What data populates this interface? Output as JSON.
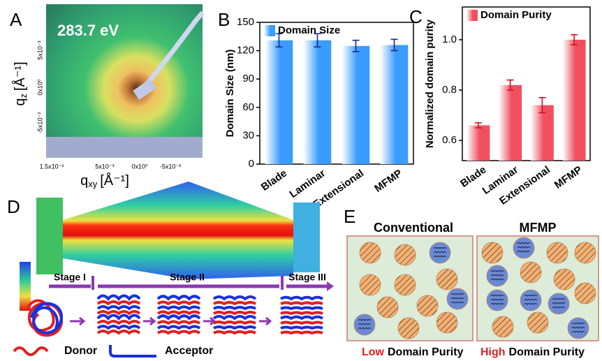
{
  "panel_labels": [
    "A",
    "B",
    "C",
    "D",
    "E"
  ],
  "panel_a": {
    "energy": "283.7 eV",
    "x_label": {
      "base": "q",
      "sub": "xy",
      "unit": "[Å⁻¹]"
    },
    "y_label": {
      "base": "q",
      "sub": "z",
      "unit": "[Å⁻¹]"
    },
    "x_ticks": [
      "1.5x10⁻²",
      "5x10⁻³",
      "0x10⁰",
      "-5x10⁻³"
    ],
    "y_ticks": [
      "5x10⁻³",
      "0x10⁰",
      "-5x10⁻³"
    ]
  },
  "chart_data": [
    {
      "type": "bar",
      "ylabel": "Domain Size (nm)",
      "categories": [
        "Blade",
        "Laminar",
        "Extensional",
        "MFMP"
      ],
      "series": [
        {
          "name": "Domain Size",
          "color": "#3a9cff",
          "values": [
            131,
            131,
            125,
            126
          ],
          "errors": [
            7,
            7,
            6,
            6
          ]
        }
      ],
      "ylim": [
        0,
        150
      ],
      "yticks": [
        0,
        30,
        60,
        90,
        120,
        150
      ],
      "legend": "upper left"
    },
    {
      "type": "bar",
      "ylabel": "Normalized domain purity",
      "categories": [
        "Blade",
        "Laminar",
        "Extensional",
        "MFMP"
      ],
      "series": [
        {
          "name": "Domain Purity",
          "color": "#f0505e",
          "values": [
            0.66,
            0.82,
            0.74,
            1.0
          ],
          "errors": [
            0.01,
            0.02,
            0.03,
            0.02
          ]
        }
      ],
      "ylim": [
        0.52,
        1.13
      ],
      "yticks": [
        0.6,
        0.8,
        {
          "value": 1,
          "label": "1.0"
        }
      ],
      "legend": "upper left"
    }
  ],
  "panel_d": {
    "stages": [
      "Stage I",
      "Stage II",
      "Stage III"
    ],
    "legend": [
      "Donor",
      "Acceptor"
    ]
  },
  "panel_e": {
    "left_title": "Conventional",
    "right_title": "MFMP",
    "left_caption": {
      "emph": "Low",
      "rest": "Domain Purity"
    },
    "right_caption": {
      "emph": "High",
      "rest": "Domain Purity"
    }
  }
}
